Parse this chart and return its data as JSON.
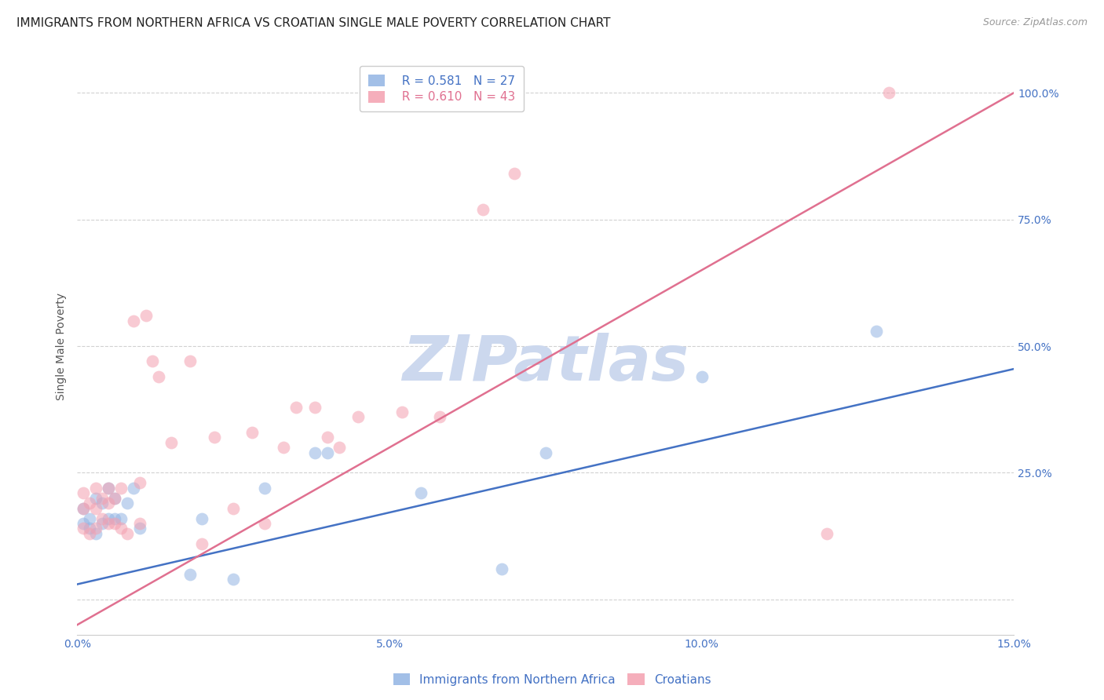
{
  "title": "IMMIGRANTS FROM NORTHERN AFRICA VS CROATIAN SINGLE MALE POVERTY CORRELATION CHART",
  "source": "Source: ZipAtlas.com",
  "ylabel": "Single Male Poverty",
  "legend_label_blue": "Immigrants from Northern Africa",
  "legend_label_pink": "Croatians",
  "R_blue": 0.581,
  "N_blue": 27,
  "R_pink": 0.61,
  "N_pink": 43,
  "xlim": [
    0.0,
    0.15
  ],
  "ylim": [
    -0.07,
    1.07
  ],
  "yticks": [
    0.0,
    0.25,
    0.5,
    0.75,
    1.0
  ],
  "ytick_labels": [
    "",
    "25.0%",
    "50.0%",
    "75.0%",
    "100.0%"
  ],
  "xticks": [
    0.0,
    0.05,
    0.1,
    0.15
  ],
  "xtick_labels": [
    "0.0%",
    "5.0%",
    "10.0%",
    "15.0%"
  ],
  "color_blue": "#92b4e3",
  "color_pink": "#f4a0b0",
  "line_color_blue": "#4472c4",
  "line_color_pink": "#e07090",
  "background_color": "#ffffff",
  "watermark": "ZIPatlas",
  "watermark_color": "#ccd8ee",
  "blue_points_x": [
    0.001,
    0.001,
    0.002,
    0.002,
    0.003,
    0.003,
    0.004,
    0.004,
    0.005,
    0.005,
    0.006,
    0.006,
    0.007,
    0.008,
    0.009,
    0.01,
    0.018,
    0.02,
    0.025,
    0.03,
    0.038,
    0.04,
    0.055,
    0.068,
    0.075,
    0.1,
    0.128
  ],
  "blue_points_y": [
    0.15,
    0.18,
    0.14,
    0.16,
    0.13,
    0.2,
    0.15,
    0.19,
    0.16,
    0.22,
    0.16,
    0.2,
    0.16,
    0.19,
    0.22,
    0.14,
    0.05,
    0.16,
    0.04,
    0.22,
    0.29,
    0.29,
    0.21,
    0.06,
    0.29,
    0.44,
    0.53
  ],
  "pink_points_x": [
    0.001,
    0.001,
    0.001,
    0.002,
    0.002,
    0.003,
    0.003,
    0.003,
    0.004,
    0.004,
    0.005,
    0.005,
    0.005,
    0.006,
    0.006,
    0.007,
    0.007,
    0.008,
    0.009,
    0.01,
    0.01,
    0.011,
    0.012,
    0.013,
    0.015,
    0.018,
    0.02,
    0.022,
    0.025,
    0.028,
    0.03,
    0.033,
    0.035,
    0.038,
    0.04,
    0.042,
    0.045,
    0.052,
    0.058,
    0.065,
    0.07,
    0.12,
    0.13
  ],
  "pink_points_y": [
    0.14,
    0.18,
    0.21,
    0.13,
    0.19,
    0.14,
    0.18,
    0.22,
    0.16,
    0.2,
    0.15,
    0.19,
    0.22,
    0.15,
    0.2,
    0.14,
    0.22,
    0.13,
    0.55,
    0.15,
    0.23,
    0.56,
    0.47,
    0.44,
    0.31,
    0.47,
    0.11,
    0.32,
    0.18,
    0.33,
    0.15,
    0.3,
    0.38,
    0.38,
    0.32,
    0.3,
    0.36,
    0.37,
    0.36,
    0.77,
    0.84,
    0.13,
    1.0
  ],
  "title_fontsize": 11,
  "axis_label_fontsize": 10,
  "tick_fontsize": 10,
  "source_fontsize": 9,
  "legend_fontsize": 11,
  "scatter_size": 130,
  "scatter_alpha": 0.55,
  "line_width": 1.8
}
